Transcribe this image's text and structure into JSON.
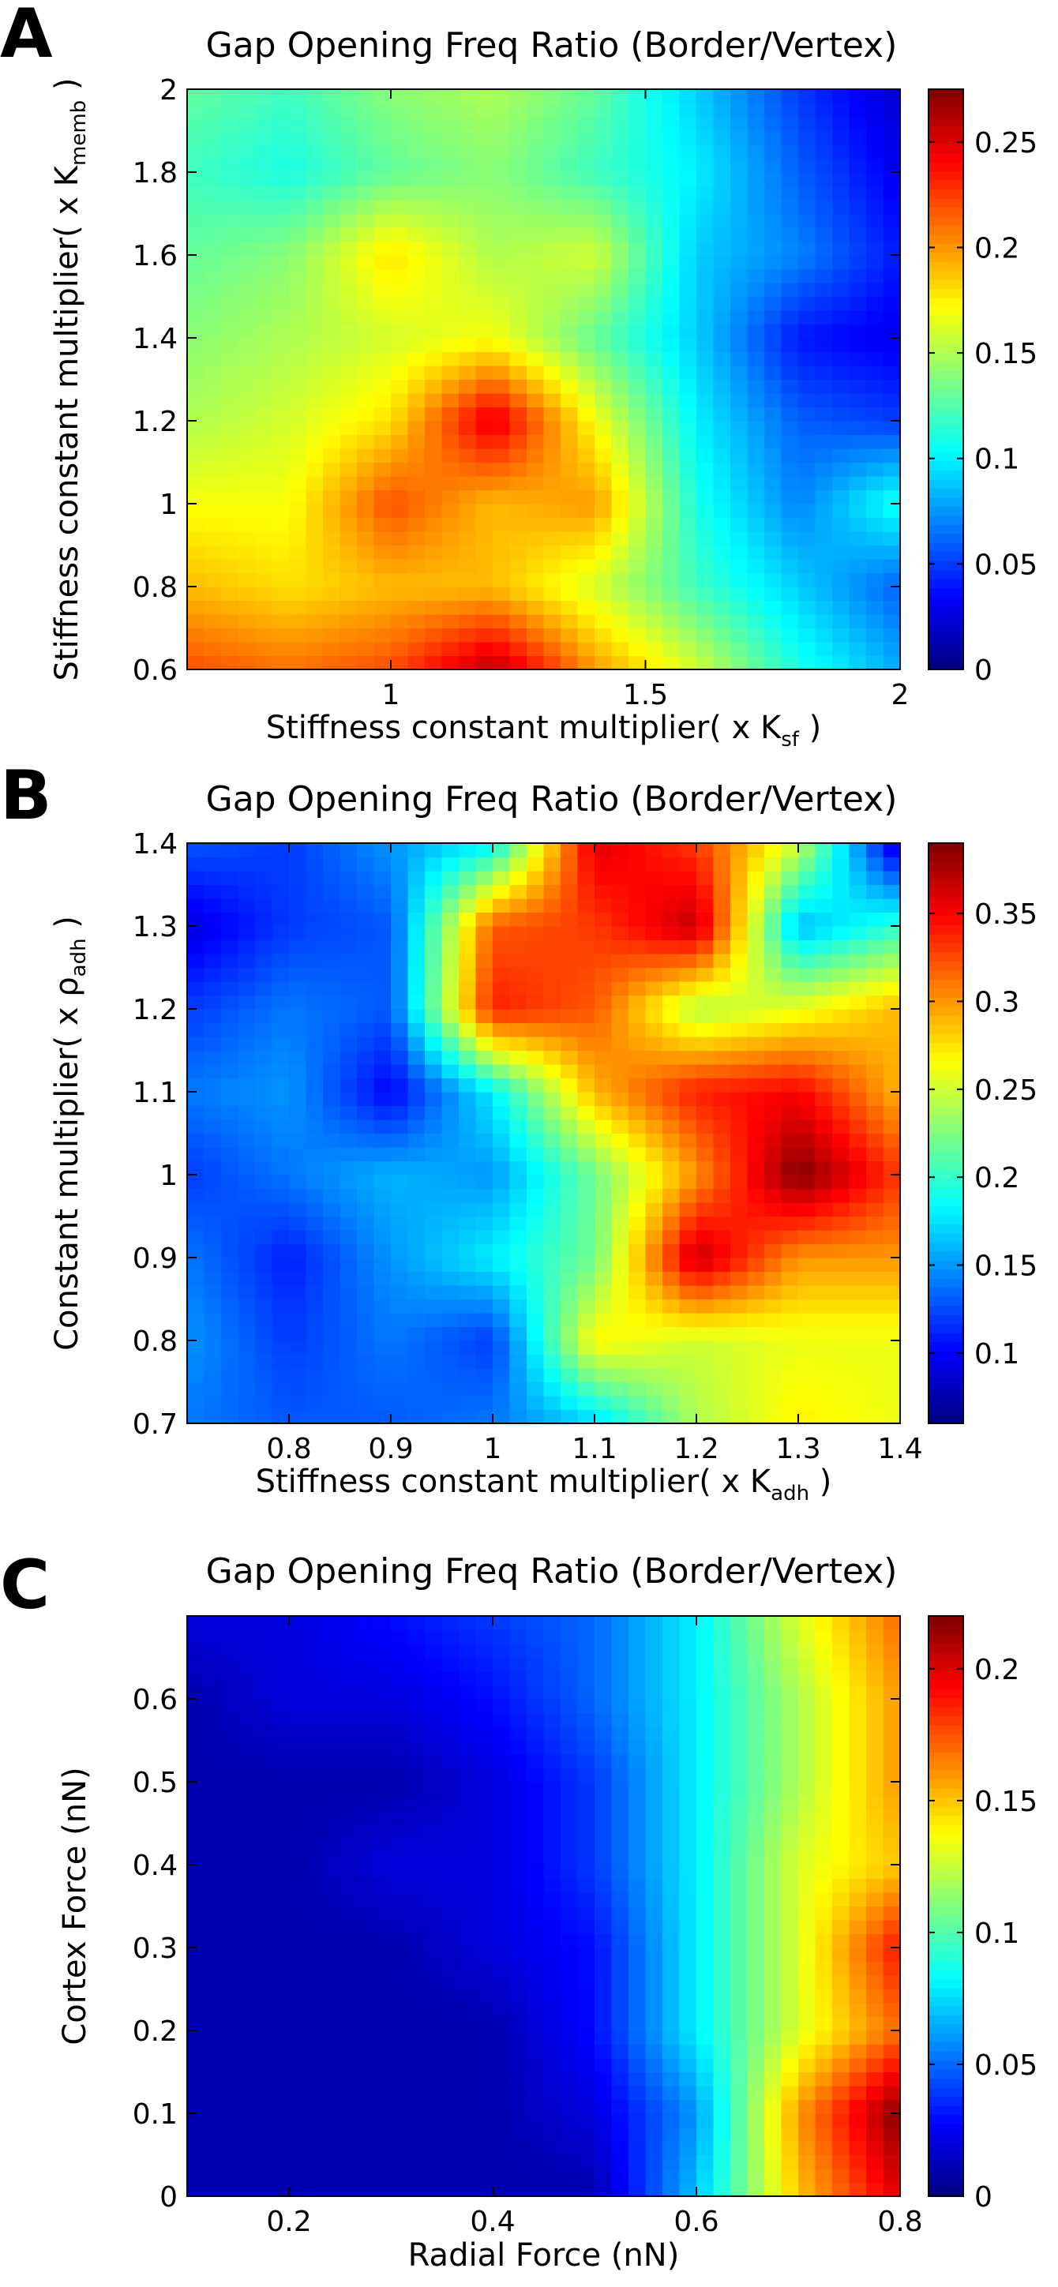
{
  "chart_data": [
    {
      "type": "heatmap",
      "panel": "A",
      "title": "Gap Opening Freq Ratio (Border/Vertex)",
      "xlabel": "Stiffness constant multiplier( x K",
      "xlabel_sub": "sf",
      "xlabel_end": " )",
      "ylabel": "Stiffness constant multiplier( x K",
      "ylabel_sub": "memb",
      "ylabel_end": " )",
      "x": [
        0.6,
        0.8,
        1.0,
        1.2,
        1.4,
        1.6,
        1.8,
        2.0
      ],
      "y": [
        0.6,
        0.8,
        1.0,
        1.2,
        1.4,
        1.6,
        1.8,
        2.0
      ],
      "xlim": [
        0.6,
        2.0
      ],
      "ylim": [
        0.6,
        2.0
      ],
      "x_ticks": [
        "1",
        "1.5",
        "2"
      ],
      "x_tick_values": [
        1.0,
        1.5,
        2.0
      ],
      "y_ticks": [
        "0.6",
        "0.8",
        "1",
        "1.2",
        "1.4",
        "1.6",
        "1.8",
        "2"
      ],
      "y_tick_values": [
        0.6,
        0.8,
        1.0,
        1.2,
        1.4,
        1.6,
        1.8,
        2.0
      ],
      "z": [
        [
          0.22,
          0.21,
          0.22,
          0.26,
          0.2,
          0.16,
          0.11,
          0.08
        ],
        [
          0.19,
          0.18,
          0.19,
          0.19,
          0.16,
          0.12,
          0.09,
          0.06
        ],
        [
          0.17,
          0.17,
          0.22,
          0.19,
          0.2,
          0.11,
          0.07,
          0.11
        ],
        [
          0.15,
          0.16,
          0.18,
          0.25,
          0.17,
          0.1,
          0.06,
          0.05
        ],
        [
          0.14,
          0.15,
          0.16,
          0.17,
          0.13,
          0.09,
          0.04,
          0.03
        ],
        [
          0.13,
          0.14,
          0.18,
          0.15,
          0.16,
          0.09,
          0.07,
          0.04
        ],
        [
          0.12,
          0.11,
          0.13,
          0.14,
          0.12,
          0.1,
          0.06,
          0.03
        ],
        [
          0.13,
          0.12,
          0.14,
          0.15,
          0.13,
          0.09,
          0.05,
          0.02
        ]
      ],
      "colorbar_ticks": [
        "0",
        "0.05",
        "0.1",
        "0.15",
        "0.2",
        "0.25"
      ],
      "colorbar_tick_values": [
        0,
        0.05,
        0.1,
        0.15,
        0.2,
        0.25
      ],
      "clim": [
        0,
        0.275
      ]
    },
    {
      "type": "heatmap",
      "panel": "B",
      "title": "Gap Opening Freq Ratio (Border/Vertex)",
      "xlabel": "Stiffness constant multiplier( x K",
      "xlabel_sub": "adh",
      "xlabel_end": " )",
      "ylabel": "Constant multiplier( x ρ",
      "ylabel_sub": "adh",
      "ylabel_end": " )",
      "x": [
        0.7,
        0.8,
        0.9,
        1.0,
        1.1,
        1.2,
        1.3,
        1.4
      ],
      "y": [
        0.7,
        0.8,
        0.9,
        1.0,
        1.1,
        1.2,
        1.3,
        1.4
      ],
      "xlim": [
        0.7,
        1.4
      ],
      "ylim": [
        0.7,
        1.4
      ],
      "x_ticks": [
        "0.8",
        "0.9",
        "1",
        "1.1",
        "1.2",
        "1.3",
        "1.4"
      ],
      "x_tick_values": [
        0.8,
        0.9,
        1.0,
        1.1,
        1.2,
        1.3,
        1.4
      ],
      "y_ticks": [
        "0.7",
        "0.8",
        "0.9",
        "1",
        "1.1",
        "1.2",
        "1.3",
        "1.4"
      ],
      "y_tick_values": [
        0.7,
        0.8,
        0.9,
        1.0,
        1.1,
        1.2,
        1.3,
        1.4
      ],
      "z": [
        [
          0.14,
          0.13,
          0.13,
          0.14,
          0.17,
          0.24,
          0.27,
          0.26
        ],
        [
          0.15,
          0.12,
          0.14,
          0.12,
          0.27,
          0.25,
          0.26,
          0.26
        ],
        [
          0.14,
          0.11,
          0.15,
          0.18,
          0.22,
          0.37,
          0.3,
          0.3
        ],
        [
          0.12,
          0.14,
          0.16,
          0.15,
          0.22,
          0.3,
          0.39,
          0.33
        ],
        [
          0.14,
          0.15,
          0.1,
          0.18,
          0.29,
          0.34,
          0.35,
          0.29
        ],
        [
          0.12,
          0.14,
          0.13,
          0.34,
          0.32,
          0.24,
          0.26,
          0.29
        ],
        [
          0.09,
          0.12,
          0.13,
          0.32,
          0.33,
          0.37,
          0.16,
          0.2
        ],
        [
          0.13,
          0.12,
          0.15,
          0.18,
          0.36,
          0.33,
          0.25,
          0.08
        ]
      ],
      "colorbar_ticks": [
        "0.1",
        "0.15",
        "0.2",
        "0.25",
        "0.3",
        "0.35"
      ],
      "colorbar_tick_values": [
        0.1,
        0.15,
        0.2,
        0.25,
        0.3,
        0.35
      ],
      "clim": [
        0.06,
        0.39
      ]
    },
    {
      "type": "heatmap",
      "panel": "C",
      "title": "Gap Opening Freq Ratio (Border/Vertex)",
      "xlabel": "Radial Force (nN)",
      "xlabel_sub": "",
      "xlabel_end": "",
      "ylabel": "Cortex Force (nN)",
      "ylabel_sub": "",
      "ylabel_end": "",
      "x": [
        0.1,
        0.2,
        0.3,
        0.4,
        0.5,
        0.6,
        0.7,
        0.8
      ],
      "y": [
        0.0,
        0.1,
        0.2,
        0.3,
        0.4,
        0.5,
        0.6,
        0.7
      ],
      "xlim": [
        0.1,
        0.8
      ],
      "ylim": [
        0.0,
        0.7
      ],
      "x_ticks": [
        "0.2",
        "0.4",
        "0.6",
        "0.8"
      ],
      "x_tick_values": [
        0.2,
        0.4,
        0.6,
        0.8
      ],
      "y_ticks": [
        "0",
        "0.1",
        "0.2",
        "0.3",
        "0.4",
        "0.5",
        "0.6"
      ],
      "y_tick_values": [
        0.0,
        0.1,
        0.2,
        0.3,
        0.4,
        0.5,
        0.6
      ],
      "z": [
        [
          0.01,
          0.01,
          0.01,
          0.01,
          0.01,
          0.07,
          0.15,
          0.2
        ],
        [
          0.01,
          0.01,
          0.01,
          0.01,
          0.02,
          0.06,
          0.16,
          0.22
        ],
        [
          0.01,
          0.01,
          0.01,
          0.01,
          0.03,
          0.08,
          0.13,
          0.17
        ],
        [
          0.01,
          0.01,
          0.01,
          0.02,
          0.03,
          0.08,
          0.13,
          0.19
        ],
        [
          0.01,
          0.01,
          0.02,
          0.02,
          0.04,
          0.08,
          0.13,
          0.15
        ],
        [
          0.01,
          0.01,
          0.01,
          0.02,
          0.04,
          0.08,
          0.12,
          0.16
        ],
        [
          0.01,
          0.02,
          0.02,
          0.03,
          0.05,
          0.08,
          0.12,
          0.16
        ],
        [
          0.02,
          0.02,
          0.03,
          0.04,
          0.05,
          0.08,
          0.13,
          0.17
        ]
      ],
      "colorbar_ticks": [
        "0",
        "0.05",
        "0.1",
        "0.15",
        "0.2"
      ],
      "colorbar_tick_values": [
        0,
        0.05,
        0.1,
        0.15,
        0.2
      ],
      "clim": [
        0,
        0.22
      ]
    }
  ],
  "panels": [
    "A",
    "B",
    "C"
  ]
}
